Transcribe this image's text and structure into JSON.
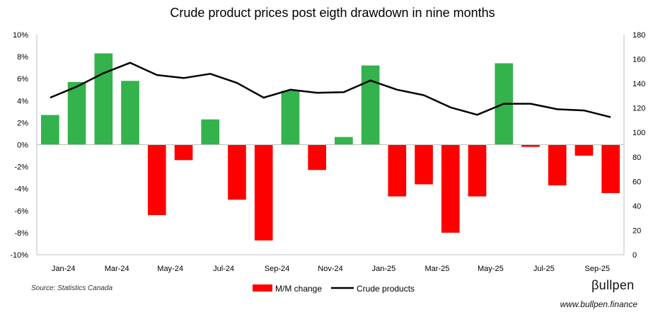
{
  "chart_data": {
    "type": "bar+line",
    "title": "Crude product prices post eigth drawdown in nine months",
    "categories": [
      "Jan-24",
      "Feb-24",
      "Mar-24",
      "Apr-24",
      "May-24",
      "Jun-24",
      "Jul-24",
      "Aug-24",
      "Sep-24",
      "Oct-24",
      "Nov-24",
      "Dec-24",
      "Jan-25",
      "Feb-25",
      "Mar-25",
      "Apr-25",
      "May-25",
      "Jun-25",
      "Jul-25",
      "Aug-25",
      "Sep-25",
      "Oct-25"
    ],
    "x_tick_labels": [
      "Jan-24",
      "Mar-24",
      "May-24",
      "Jul-24",
      "Sep-24",
      "Nov-24",
      "Jan-25",
      "Mar-25",
      "May-25",
      "Jul-25",
      "Sep-25"
    ],
    "series": [
      {
        "name": "M/M change",
        "type": "bar",
        "axis": "left",
        "positive_color": "#34b24c",
        "negative_color": "#ff0000",
        "values": [
          2.7,
          5.7,
          8.3,
          5.8,
          -6.4,
          -1.4,
          2.3,
          -5.0,
          -8.7,
          4.9,
          -2.3,
          0.7,
          7.2,
          -4.7,
          -3.6,
          -8.0,
          -4.7,
          7.4,
          -0.2,
          -3.7,
          -1.0,
          -4.4
        ]
      },
      {
        "name": "Crude products",
        "type": "line",
        "axis": "right",
        "color": "#000000",
        "values": [
          128.5,
          137.5,
          148.5,
          157,
          147,
          144.5,
          148,
          140.5,
          128.5,
          135,
          132.5,
          133,
          142.5,
          135,
          130.5,
          120.5,
          114.5,
          123.5,
          123.5,
          119,
          118,
          112.5
        ]
      }
    ],
    "y_left": {
      "min": -10,
      "max": 10,
      "step": 2,
      "tick_labels": [
        "-10%",
        "-8%",
        "-6%",
        "-4%",
        "-2%",
        "0%",
        "2%",
        "4%",
        "6%",
        "8%",
        "10%"
      ]
    },
    "y_right": {
      "min": 0,
      "max": 180,
      "step": 20,
      "tick_labels": [
        "0",
        "20",
        "40",
        "60",
        "80",
        "100",
        "120",
        "140",
        "160",
        "180"
      ]
    },
    "legend": {
      "position": "bottom",
      "bar_label": "M/M change",
      "line_label": "Crude products"
    },
    "grid": false
  },
  "footer": {
    "source": "Source: Statistics Canada",
    "brand": "βullpen",
    "website": "www.bullpen.finance"
  }
}
